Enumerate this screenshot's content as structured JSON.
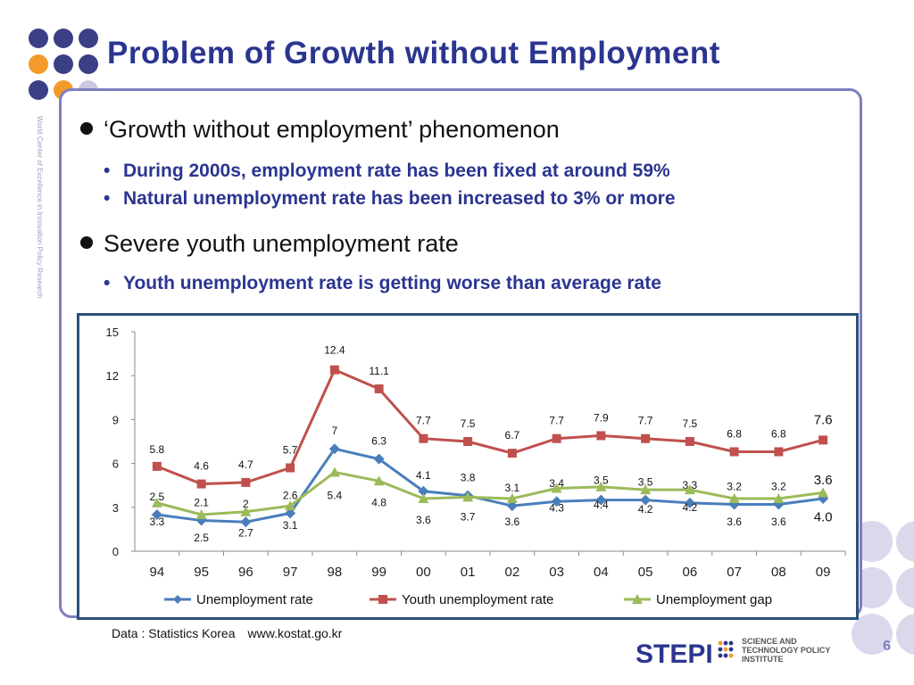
{
  "slide": {
    "title": "Problem of Growth without Employment",
    "side_text": "World Center of Excellence in Innovation Policy Research",
    "page_number": "6",
    "bullets": [
      {
        "text": "‘Growth without employment’ phenomenon",
        "subs": [
          "During 2000s, employment rate has been fixed at around 59%",
          "Natural unemployment rate has been increased to 3% or more"
        ]
      },
      {
        "text": "Severe youth unemployment rate",
        "subs": [
          "Youth unemployment rate is getting worse than average rate"
        ]
      }
    ],
    "source_label": "Data : Statistics Korea",
    "source_url": "www.kostat.go.kr",
    "logo": {
      "mark": "STEPI",
      "lines": [
        "SCIENCE AND",
        "TECHNOLOGY POLICY",
        "INSTITUTE"
      ]
    }
  },
  "colors": {
    "title": "#2b3590",
    "accent_orange": "#f39a2b",
    "dot_navy": "#3a3f86",
    "dot_light": "#c9c8e0",
    "frame": "#7c7fbf",
    "chart_border": "#2a4f7a",
    "unemployment": "#4a7ebb",
    "youth": "#c0504d",
    "gap": "#9bbb59"
  },
  "chart_data": {
    "type": "line",
    "categories": [
      "94",
      "95",
      "96",
      "97",
      "98",
      "99",
      "00",
      "01",
      "02",
      "03",
      "04",
      "05",
      "06",
      "07",
      "08",
      "09"
    ],
    "ylim": [
      0,
      15
    ],
    "yticks": [
      0,
      3,
      6,
      9,
      12,
      15
    ],
    "grid": false,
    "legend_position": "bottom",
    "series": [
      {
        "name": "Unemployment rate",
        "color": "#4a7ebb",
        "marker": "diamond",
        "values": [
          2.5,
          2.1,
          2.0,
          2.6,
          7.0,
          6.3,
          4.1,
          3.8,
          3.1,
          3.4,
          3.5,
          3.5,
          3.3,
          3.2,
          3.2,
          3.6
        ],
        "labels": [
          "2.5",
          "2.1",
          "2",
          "2.6",
          "7",
          "6.3",
          "4.1",
          "3.8",
          "3.1",
          "3.4",
          "3.5",
          "3.5",
          "3.3",
          "3.2",
          "3.2",
          "3.6"
        ]
      },
      {
        "name": "Youth unemployment rate",
        "color": "#c0504d",
        "marker": "square",
        "values": [
          5.8,
          4.6,
          4.7,
          5.7,
          12.4,
          11.1,
          7.7,
          7.5,
          6.7,
          7.7,
          7.9,
          7.7,
          7.5,
          6.8,
          6.8,
          7.6
        ],
        "labels": [
          "5.8",
          "4.6",
          "4.7",
          "5.7",
          "12.4",
          "11.1",
          "7.7",
          "7.5",
          "6.7",
          "7.7",
          "7.9",
          "7.7",
          "7.5",
          "6.8",
          "6.8",
          "7.6"
        ]
      },
      {
        "name": "Unemployment gap",
        "color": "#9bbb59",
        "marker": "triangle",
        "values": [
          3.3,
          2.5,
          2.7,
          3.1,
          5.4,
          4.8,
          3.6,
          3.7,
          3.6,
          4.3,
          4.4,
          4.2,
          4.2,
          3.6,
          3.6,
          4.0
        ],
        "labels": [
          "3.3",
          "2.5",
          "2.7",
          "3.1",
          "5.4",
          "4.8",
          "3.6",
          "3.7",
          "3.6",
          "4.3",
          "4.4",
          "4.2",
          "4.2",
          "3.6",
          "3.6",
          "4.0"
        ]
      }
    ]
  }
}
